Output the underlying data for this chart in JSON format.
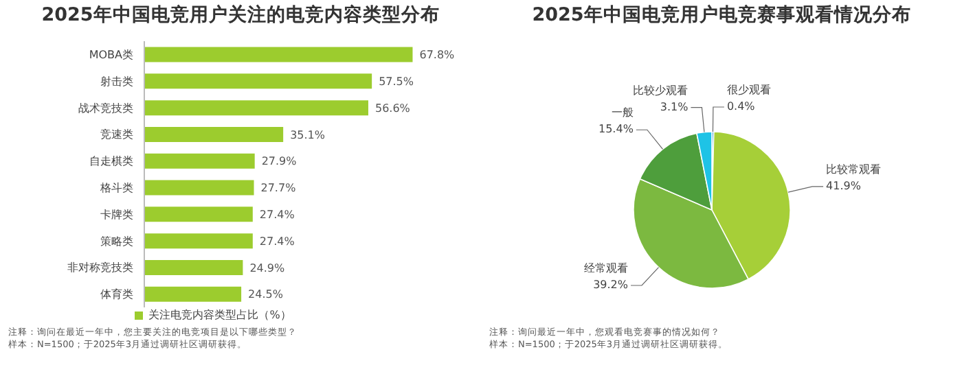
{
  "chart_data": [
    {
      "type": "bar",
      "orientation": "horizontal",
      "title": "2025年中国电竞用户关注的电竞内容类型分布",
      "categories": [
        "MOBA类",
        "射击类",
        "战术竞技类",
        "竞速类",
        "自走棋类",
        "格斗类",
        "卡牌类",
        "策略类",
        "非对称竞技类",
        "体育类"
      ],
      "series": [
        {
          "name": "关注电竞内容类型占比（%）",
          "color": "#9ccc2e",
          "values": [
            67.8,
            57.5,
            56.6,
            35.1,
            27.9,
            27.7,
            27.4,
            27.4,
            24.9,
            24.5
          ],
          "value_labels": [
            "67.8%",
            "57.5%",
            "56.6%",
            "35.1%",
            "27.9%",
            "27.7%",
            "27.4%",
            "27.4%",
            "24.9%",
            "24.5%"
          ]
        }
      ],
      "legend": "bottom",
      "annotations": [
        "注释：询问在最近一年中，您主要关注的电竞项目是以下哪些类型？",
        "样本：N=1500；于2025年3月通过调研社区调研获得。"
      ]
    },
    {
      "type": "pie",
      "title": "2025年中国电竞用户电竞赛事观看情况分布",
      "categories": [
        "很少观看",
        "比较常观看",
        "经常观看",
        "一般",
        "比较少观看"
      ],
      "values": [
        0.4,
        41.9,
        39.2,
        15.4,
        3.1
      ],
      "colors": [
        "#4a9fd8",
        "#a6cf38",
        "#7cb940",
        "#4e9e3c",
        "#1ec3e6"
      ],
      "value_labels": [
        "0.4%",
        "41.9%",
        "39.2%",
        "15.4%",
        "3.1%"
      ],
      "legend": false,
      "annotations": [
        "注释：询问最近一年中，您观看电竞赛事的情况如何？",
        "样本：N=1500；于2025年3月通过调研社区调研获得。"
      ]
    }
  ]
}
